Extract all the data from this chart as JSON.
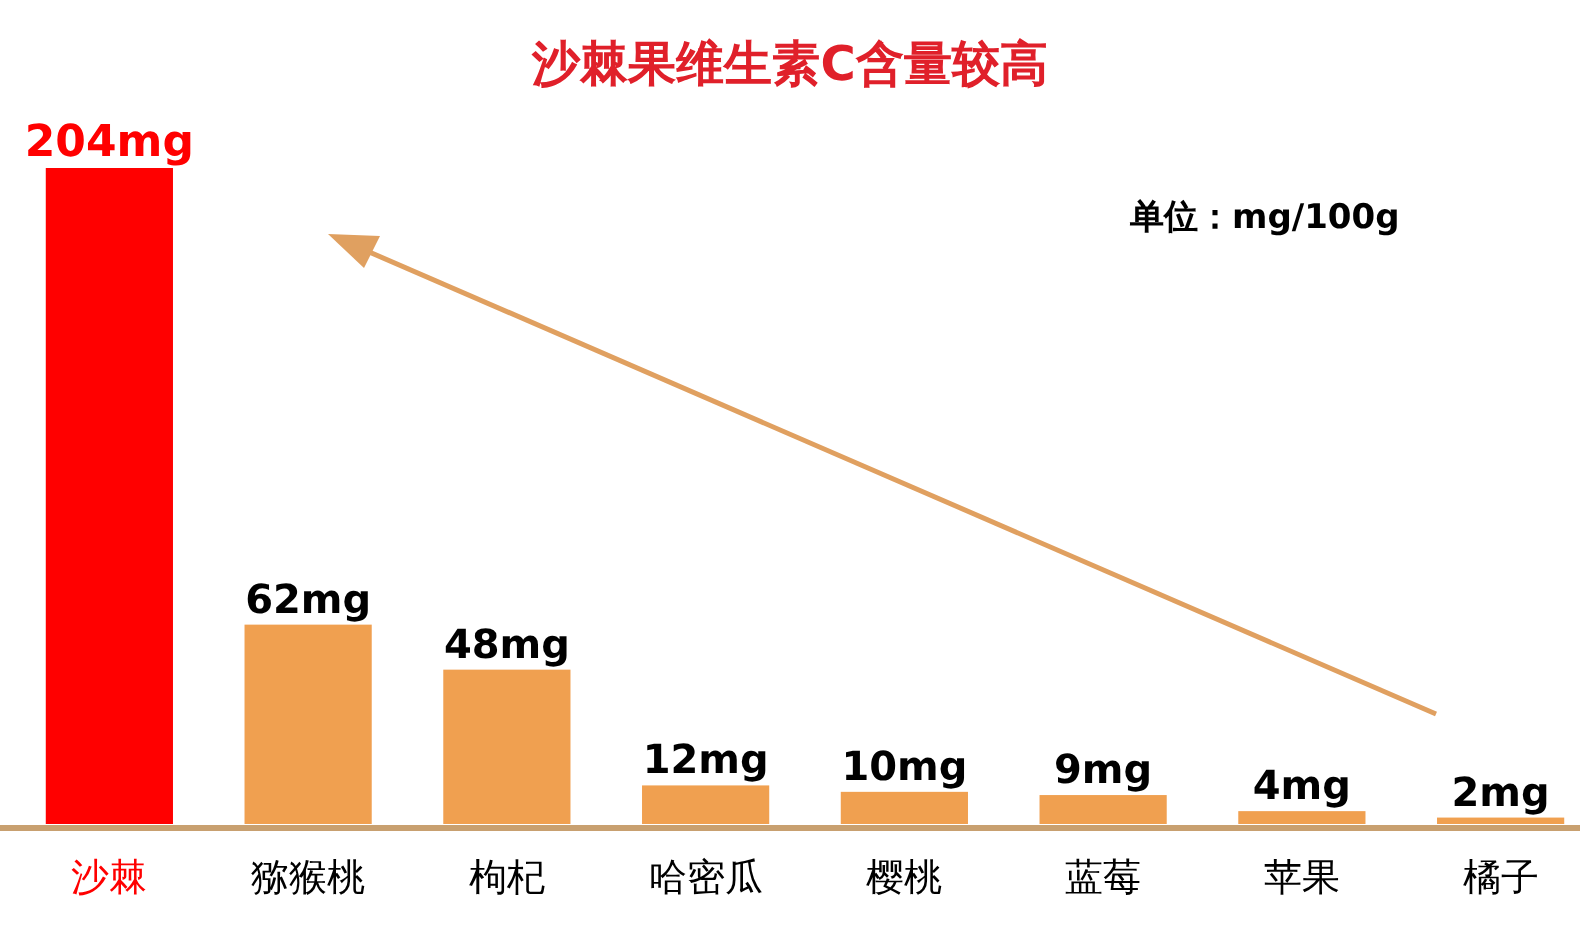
{
  "chart_data": {
    "type": "bar",
    "title": "沙棘果维生素C含量较高",
    "categories": [
      "沙棘",
      "猕猴桃",
      "枸杞",
      "哈密瓜",
      "樱桃",
      "蓝莓",
      "苹果",
      "橘子"
    ],
    "values": [
      204,
      62,
      48,
      12,
      10,
      9,
      4,
      2
    ],
    "colors": [
      "#ff0000",
      "#f0a050",
      "#f0a050",
      "#f0a050",
      "#f0a050",
      "#f0a050",
      "#f0a050",
      "#f0a050"
    ],
    "value_labels": [
      "204mg",
      "62mg",
      "48mg",
      "12mg",
      "10mg",
      "9mg",
      "4mg",
      "2mg"
    ],
    "annotations": [
      "单位：mg/100g"
    ]
  }
}
